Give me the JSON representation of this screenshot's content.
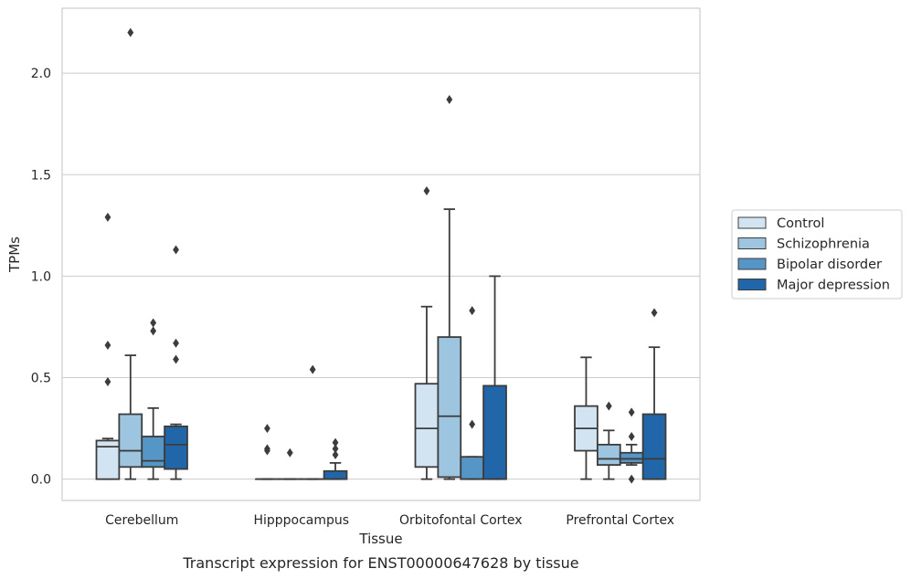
{
  "chart_data": {
    "type": "box",
    "caption": "Transcript expression for ENST00000647628 by tissue",
    "xlabel": "Tissue",
    "ylabel": "TPMs",
    "ylim": [
      -0.105,
      2.32
    ],
    "yticks": [
      0.0,
      0.5,
      1.0,
      1.5,
      2.0
    ],
    "ytick_labels": [
      "0.0",
      "0.5",
      "1.0",
      "1.5",
      "2.0"
    ],
    "grid": "horizontal",
    "legend_position": "right",
    "categories": [
      "Cerebellum",
      "Hipppocampus",
      "Orbitofontal Cortex",
      "Prefrontal Cortex"
    ],
    "series": [
      {
        "name": "Control",
        "color": "#d2e3f2",
        "boxes": [
          {
            "whislo": 0.0,
            "q1": 0.0,
            "med": 0.16,
            "q3": 0.19,
            "whishi": 0.2,
            "fliers": [
              1.29,
              0.66,
              0.48
            ]
          },
          {
            "whislo": 0.0,
            "q1": 0.0,
            "med": 0.0,
            "q3": 0.0,
            "whishi": 0.0,
            "fliers": [
              0.25,
              0.15,
              0.14
            ]
          },
          {
            "whislo": 0.0,
            "q1": 0.06,
            "med": 0.25,
            "q3": 0.47,
            "whishi": 0.85,
            "fliers": [
              1.42
            ]
          },
          {
            "whislo": 0.0,
            "q1": 0.14,
            "med": 0.25,
            "q3": 0.36,
            "whishi": 0.6,
            "fliers": []
          }
        ]
      },
      {
        "name": "Schizophrenia",
        "color": "#9dc5df",
        "boxes": [
          {
            "whislo": 0.0,
            "q1": 0.06,
            "med": 0.14,
            "q3": 0.32,
            "whishi": 0.61,
            "fliers": [
              2.2
            ]
          },
          {
            "whislo": 0.0,
            "q1": 0.0,
            "med": 0.0,
            "q3": 0.0,
            "whishi": 0.0,
            "fliers": [
              0.13
            ]
          },
          {
            "whislo": 0.0,
            "q1": 0.01,
            "med": 0.31,
            "q3": 0.7,
            "whishi": 1.33,
            "fliers": [
              1.87
            ]
          },
          {
            "whislo": 0.0,
            "q1": 0.07,
            "med": 0.1,
            "q3": 0.17,
            "whishi": 0.24,
            "fliers": [
              0.36
            ]
          }
        ]
      },
      {
        "name": "Bipolar disorder",
        "color": "#5596c6",
        "boxes": [
          {
            "whislo": 0.0,
            "q1": 0.06,
            "med": 0.09,
            "q3": 0.21,
            "whishi": 0.35,
            "fliers": [
              0.77,
              0.73
            ]
          },
          {
            "whislo": 0.0,
            "q1": 0.0,
            "med": 0.0,
            "q3": 0.0,
            "whishi": 0.0,
            "fliers": [
              0.54
            ]
          },
          {
            "whislo": 0.0,
            "q1": 0.0,
            "med": 0.0,
            "q3": 0.11,
            "whishi": 0.11,
            "fliers": [
              0.83,
              0.27
            ]
          },
          {
            "whislo": 0.07,
            "q1": 0.08,
            "med": 0.1,
            "q3": 0.13,
            "whishi": 0.17,
            "fliers": [
              0.33,
              0.21,
              0.0
            ]
          }
        ]
      },
      {
        "name": "Major depression",
        "color": "#2166a8",
        "boxes": [
          {
            "whislo": 0.0,
            "q1": 0.05,
            "med": 0.17,
            "q3": 0.26,
            "whishi": 0.27,
            "fliers": [
              1.13,
              0.67,
              0.59
            ]
          },
          {
            "whislo": 0.0,
            "q1": 0.0,
            "med": 0.0,
            "q3": 0.04,
            "whishi": 0.08,
            "fliers": [
              0.18,
              0.15,
              0.12
            ]
          },
          {
            "whislo": 0.0,
            "q1": 0.0,
            "med": 0.0,
            "q3": 0.46,
            "whishi": 1.0,
            "fliers": []
          },
          {
            "whislo": 0.0,
            "q1": 0.0,
            "med": 0.1,
            "q3": 0.32,
            "whishi": 0.65,
            "fliers": [
              0.82
            ]
          }
        ]
      }
    ]
  }
}
